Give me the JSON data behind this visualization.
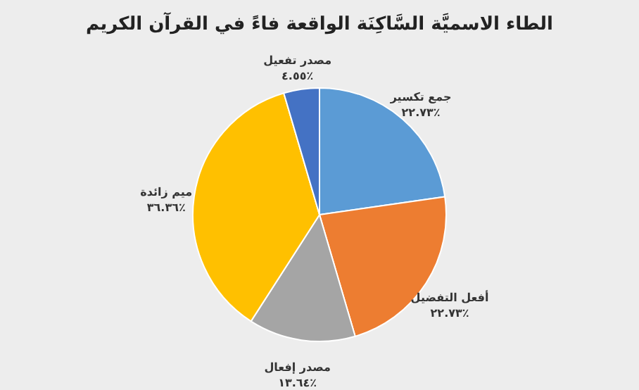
{
  "chart_data": {
    "type": "pie",
    "title": "الطاء الاسميَّة السَّاكِنَة الواقعة فاءً في القرآن الكريم",
    "categories": [
      "جمع تكسير",
      "أفعل التفضيل",
      "مصدر إفعال",
      "ميم زائدة",
      "مصدر تفعيل"
    ],
    "values": [
      22.73,
      22.73,
      13.64,
      36.36,
      4.55
    ],
    "colors": [
      "#5b9bd5",
      "#ed7d31",
      "#a5a5a5",
      "#ffc000",
      "#4472c4"
    ],
    "value_labels": [
      "٢٢.٧٣٪",
      "٢٢.٧٣٪",
      "١٣.٦٤٪",
      "٣٦.٣٦٪",
      "٤.٥٥٪"
    ]
  }
}
